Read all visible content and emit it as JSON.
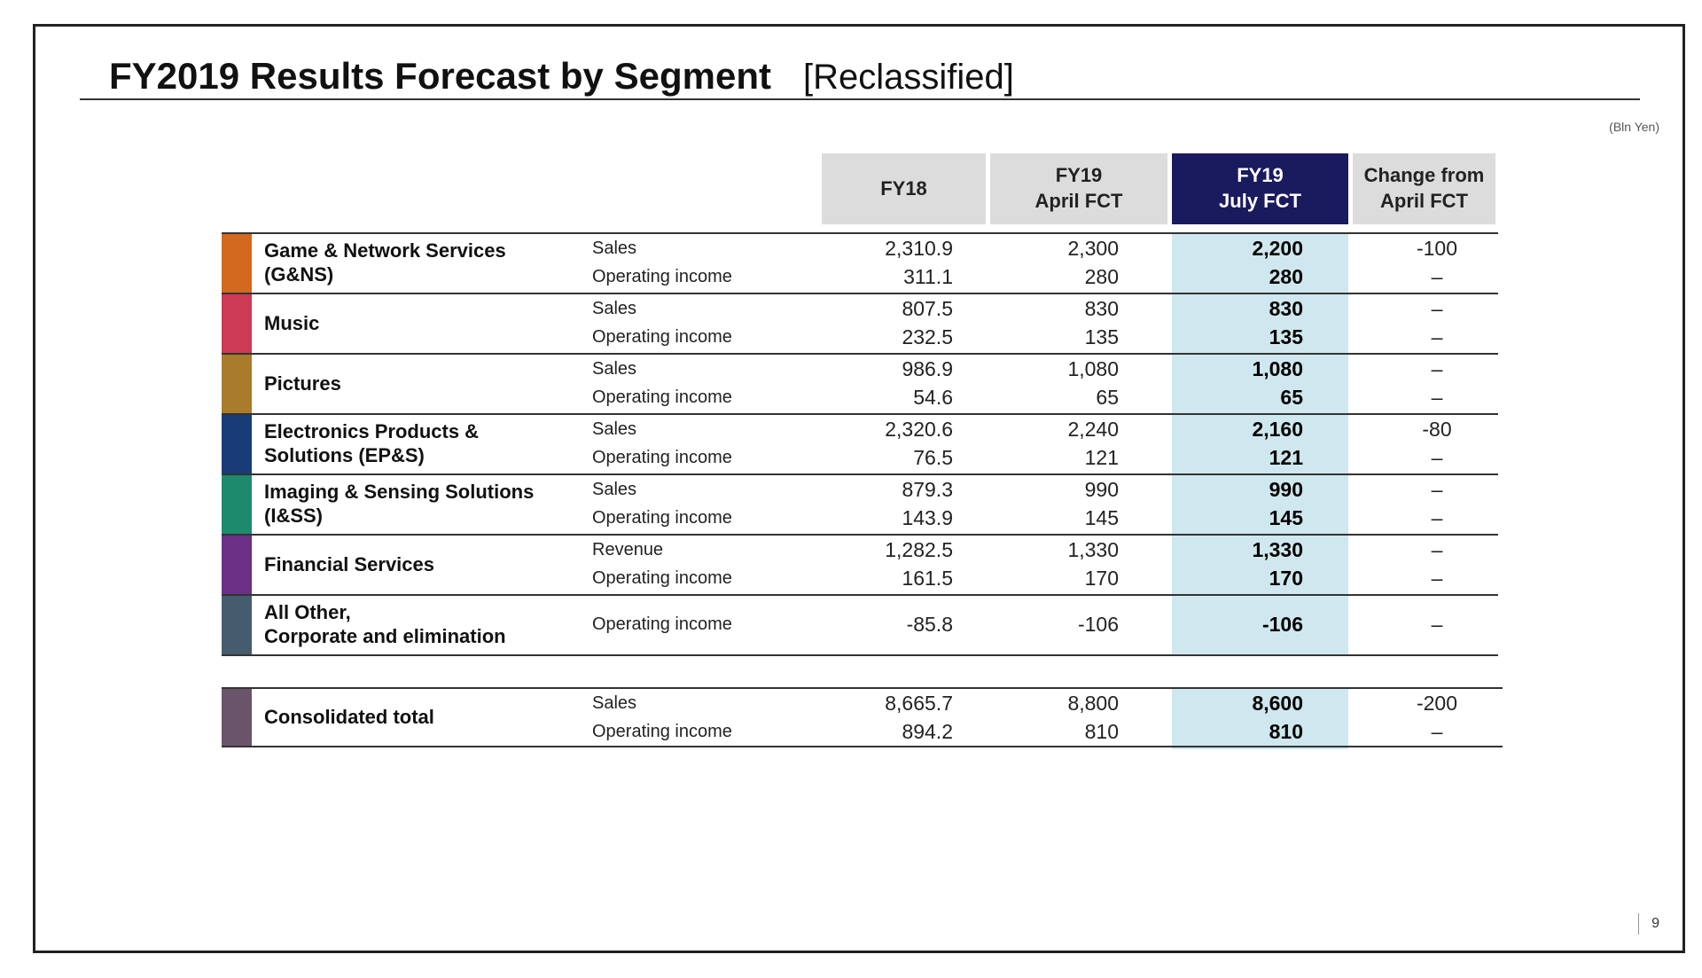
{
  "title": "FY2019 Results Forecast by Segment",
  "subtitle": "[Reclassified]",
  "unit": "(Bln Yen)",
  "page_number": "9",
  "headers": {
    "fy18": "FY18",
    "fy19_april_line1": "FY19",
    "fy19_april_line2": "April FCT",
    "fy19_july_line1": "FY19",
    "fy19_july_line2": "July FCT",
    "change_line1": "Change from",
    "change_line2": "April FCT"
  },
  "colors": {
    "header_gray": "#dcdcdc",
    "header_navy": "#1a1a5e",
    "july_highlight": "#cfe7ee"
  },
  "segments": [
    {
      "name_line1": "Game & Network Services",
      "name_line2": "(G&NS)",
      "color": "#d2691e",
      "rows": [
        {
          "metric": "Sales",
          "fy18": "2,310.9",
          "april": "2,300",
          "july": "2,200",
          "change": "-100"
        },
        {
          "metric": "Operating income",
          "fy18": "311.1",
          "april": "280",
          "july": "280",
          "change": "–"
        }
      ]
    },
    {
      "name_line1": "Music",
      "name_line2": "",
      "color": "#cc3a55",
      "rows": [
        {
          "metric": "Sales",
          "fy18": "807.5",
          "april": "830",
          "july": "830",
          "change": "–"
        },
        {
          "metric": "Operating income",
          "fy18": "232.5",
          "april": "135",
          "july": "135",
          "change": "–"
        }
      ]
    },
    {
      "name_line1": "Pictures",
      "name_line2": "",
      "color": "#a87c2a",
      "rows": [
        {
          "metric": "Sales",
          "fy18": "986.9",
          "april": "1,080",
          "july": "1,080",
          "change": "–"
        },
        {
          "metric": "Operating income",
          "fy18": "54.6",
          "april": "65",
          "july": "65",
          "change": "–"
        }
      ]
    },
    {
      "name_line1": "Electronics Products &",
      "name_line2": "Solutions (EP&S)",
      "color": "#183c78",
      "rows": [
        {
          "metric": "Sales",
          "fy18": "2,320.6",
          "april": "2,240",
          "july": "2,160",
          "change": "-80"
        },
        {
          "metric": "Operating income",
          "fy18": "76.5",
          "april": "121",
          "july": "121",
          "change": "–"
        }
      ]
    },
    {
      "name_line1": "Imaging & Sensing Solutions",
      "name_line2": "(I&SS)",
      "color": "#1d8a6e",
      "rows": [
        {
          "metric": "Sales",
          "fy18": "879.3",
          "april": "990",
          "july": "990",
          "change": "–"
        },
        {
          "metric": "Operating income",
          "fy18": "143.9",
          "april": "145",
          "july": "145",
          "change": "–"
        }
      ]
    },
    {
      "name_line1": "Financial Services",
      "name_line2": "",
      "color": "#6b2f86",
      "rows": [
        {
          "metric": "Revenue",
          "fy18": "1,282.5",
          "april": "1,330",
          "july": "1,330",
          "change": "–"
        },
        {
          "metric": "Operating income",
          "fy18": "161.5",
          "april": "170",
          "july": "170",
          "change": "–"
        }
      ]
    },
    {
      "name_line1": "All Other,",
      "name_line2": "Corporate and elimination",
      "color": "#445c6e",
      "rows": [
        {
          "metric": "Operating income",
          "fy18": "-85.8",
          "april": "-106",
          "july": "-106",
          "change": "–"
        }
      ]
    }
  ],
  "total": {
    "name_line1": "Consolidated total",
    "name_line2": "",
    "color": "#6a546a",
    "rows": [
      {
        "metric": "Sales",
        "fy18": "8,665.7",
        "april": "8,800",
        "july": "8,600",
        "change": "-200"
      },
      {
        "metric": "Operating income",
        "fy18": "894.2",
        "april": "810",
        "july": "810",
        "change": "–"
      }
    ]
  }
}
